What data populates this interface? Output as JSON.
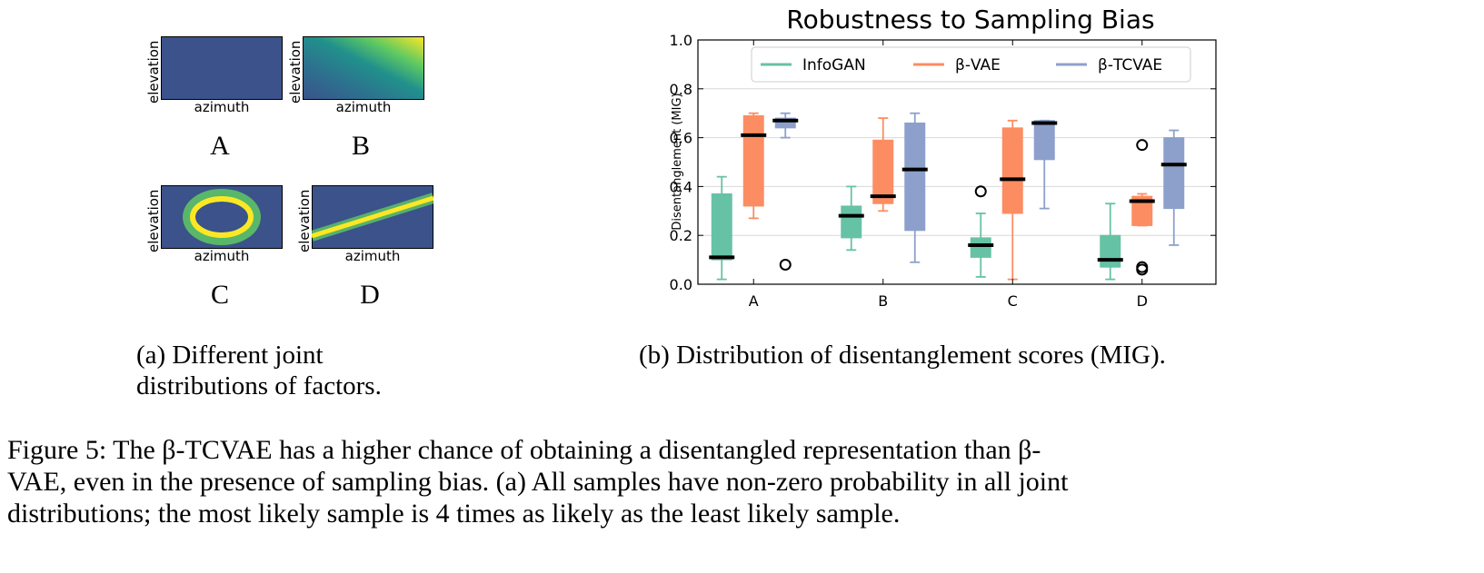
{
  "panel_a": {
    "thumbnails": [
      {
        "letter": "A",
        "xlabel": "azimuth",
        "ylabel": "elevation",
        "pattern": "uniform"
      },
      {
        "letter": "B",
        "xlabel": "azimuth",
        "ylabel": "elevation",
        "pattern": "diagonal-gradient"
      },
      {
        "letter": "C",
        "xlabel": "azimuth",
        "ylabel": "elevation",
        "pattern": "ring"
      },
      {
        "letter": "D",
        "xlabel": "azimuth",
        "ylabel": "elevation",
        "pattern": "diagonal-line"
      }
    ],
    "caption": "(a) Different joint distributions of factors."
  },
  "panel_b": {
    "caption": "(b) Distribution of disentanglement scores (MIG)."
  },
  "chart_data": {
    "type": "box",
    "title": "Robustness to Sampling Bias",
    "ylabel": "Disentanglement (MIG)",
    "xlabel": "",
    "categories": [
      "A",
      "B",
      "C",
      "D"
    ],
    "ylim": [
      0.0,
      1.0
    ],
    "yticks": [
      "0.0",
      "0.2",
      "0.4",
      "0.6",
      "0.8",
      "1.0"
    ],
    "grid": "horizontal",
    "legend_position": "top",
    "series": [
      {
        "name": "InfoGAN",
        "color": "#66c2a5",
        "boxes": [
          {
            "whislo": 0.02,
            "q1": 0.1,
            "med": 0.11,
            "q3": 0.37,
            "whishi": 0.44,
            "fliers": []
          },
          {
            "whislo": 0.14,
            "q1": 0.19,
            "med": 0.28,
            "q3": 0.32,
            "whishi": 0.4,
            "fliers": []
          },
          {
            "whislo": 0.03,
            "q1": 0.11,
            "med": 0.16,
            "q3": 0.19,
            "whishi": 0.29,
            "fliers": [
              0.38
            ]
          },
          {
            "whislo": 0.02,
            "q1": 0.07,
            "med": 0.1,
            "q3": 0.2,
            "whishi": 0.33,
            "fliers": []
          }
        ]
      },
      {
        "name": "β-VAE",
        "color": "#fc8d62",
        "boxes": [
          {
            "whislo": 0.27,
            "q1": 0.32,
            "med": 0.61,
            "q3": 0.69,
            "whishi": 0.7,
            "fliers": []
          },
          {
            "whislo": 0.3,
            "q1": 0.33,
            "med": 0.36,
            "q3": 0.59,
            "whishi": 0.68,
            "fliers": []
          },
          {
            "whislo": 0.02,
            "q1": 0.29,
            "med": 0.43,
            "q3": 0.64,
            "whishi": 0.67,
            "fliers": []
          },
          {
            "whislo": 0.24,
            "q1": 0.24,
            "med": 0.34,
            "q3": 0.36,
            "whishi": 0.37,
            "fliers": [
              0.57,
              0.06,
              0.07
            ]
          }
        ]
      },
      {
        "name": "β-TCVAE",
        "color": "#8da0cb",
        "boxes": [
          {
            "whislo": 0.6,
            "q1": 0.64,
            "med": 0.67,
            "q3": 0.68,
            "whishi": 0.7,
            "fliers": [
              0.08
            ]
          },
          {
            "whislo": 0.09,
            "q1": 0.22,
            "med": 0.47,
            "q3": 0.66,
            "whishi": 0.7,
            "fliers": []
          },
          {
            "whislo": 0.31,
            "q1": 0.51,
            "med": 0.66,
            "q3": 0.67,
            "whishi": 0.67,
            "fliers": []
          },
          {
            "whislo": 0.16,
            "q1": 0.31,
            "med": 0.49,
            "q3": 0.6,
            "whishi": 0.63,
            "fliers": []
          }
        ]
      }
    ]
  },
  "figure_caption": {
    "line1": "Figure 5: The β-TCVAE has a higher chance of obtaining a disentangled representation than β-",
    "line2": "VAE, even in the presence of sampling bias. (a) All samples have non-zero probability in all joint",
    "line3": "distributions; the most likely sample is 4 times as likely as the least likely sample."
  }
}
